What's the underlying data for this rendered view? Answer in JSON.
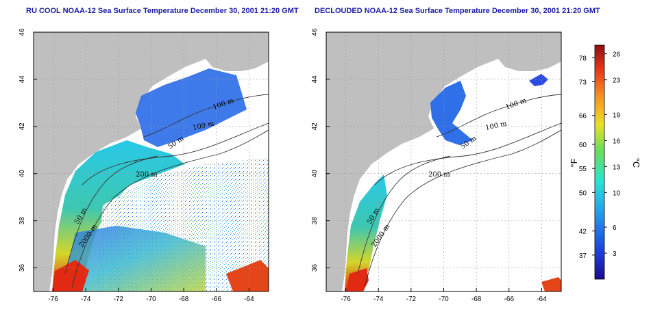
{
  "panels": [
    {
      "title": "RU COOL NOAA-12 Sea Surface Temperature December 30, 2001 21:20 GMT",
      "contour_labels": [
        "100 m",
        "100 m",
        "50 m",
        "200 m",
        "50 m",
        "2000 m"
      ]
    },
    {
      "title": "DECLOUDED NOAA-12 Sea Surface Temperature December 30, 2001 21:20 GMT",
      "contour_labels": [
        "100 m",
        "100 m",
        "50 m",
        "200 m",
        "50 m",
        "2000 m"
      ]
    }
  ],
  "map_axes": {
    "lon_ticks": [
      "-76",
      "-74",
      "-72",
      "-70",
      "-68",
      "-66",
      "-64"
    ],
    "lat_ticks": [
      "36",
      "38",
      "40",
      "42",
      "44",
      "46"
    ],
    "lon_range": [
      -77.2,
      -62.8
    ],
    "lat_range": [
      35.0,
      46.0
    ]
  },
  "colorbar": {
    "fahrenheit_ticks": [
      "78",
      "73",
      "66",
      "60",
      "55",
      "50",
      "42",
      "37"
    ],
    "celsius_ticks": [
      "26",
      "23",
      "19",
      "16",
      "13",
      "10",
      "6",
      "3"
    ],
    "fahrenheit_label": "°F",
    "celsius_label": "°C",
    "range_celsius": [
      0,
      27
    ]
  },
  "colors": {
    "land": "#bfbfbf",
    "title": "#1a1aa6",
    "cold": "#1f3fd8",
    "warm": "#d81f10"
  }
}
